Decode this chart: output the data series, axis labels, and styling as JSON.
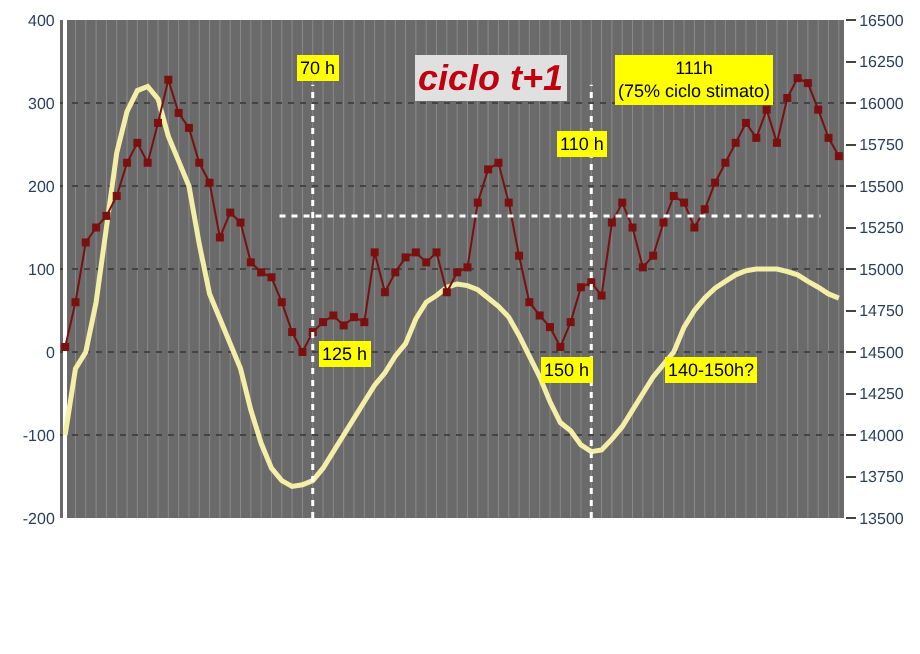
{
  "chart_data": {
    "type": "line",
    "title": "ciclo t+1",
    "categories": [
      null,
      null,
      null,
      null,
      null,
      null,
      null,
      null,
      null,
      null,
      null,
      null,
      null,
      null,
      null,
      null,
      null,
      null,
      null,
      null,
      null,
      null,
      null,
      null,
      null,
      null,
      null,
      null,
      null,
      null,
      null,
      null,
      null,
      null,
      null,
      null,
      null,
      null,
      null,
      null,
      null,
      null,
      null,
      null,
      null,
      null,
      null,
      null,
      null,
      null,
      null,
      null,
      null,
      null,
      null,
      null,
      null,
      null,
      null,
      null,
      null,
      null,
      null,
      null,
      null,
      null,
      null,
      null,
      null,
      null,
      null,
      null,
      null,
      null,
      null,
      null
    ],
    "series": [
      {
        "axis": "y",
        "color": "#f3efa6",
        "marker": "none",
        "values": [
          -100,
          -20,
          0,
          60,
          150,
          240,
          290,
          315,
          320,
          305,
          260,
          230,
          200,
          130,
          70,
          40,
          10,
          -20,
          -70,
          -110,
          -140,
          -155,
          -162,
          -160,
          -155,
          -140,
          -120,
          -100,
          -80,
          -60,
          -40,
          -25,
          -5,
          10,
          40,
          60,
          68,
          78,
          82,
          80,
          75,
          65,
          55,
          42,
          20,
          -5,
          -30,
          -60,
          -85,
          -95,
          -112,
          -120,
          -118,
          -105,
          -90,
          -70,
          -50,
          -30,
          -15,
          0,
          30,
          50,
          65,
          77,
          85,
          93,
          98,
          100,
          100,
          100,
          97,
          93,
          85,
          78,
          70,
          65
        ]
      },
      {
        "axis": "y2",
        "color": "#7a1010",
        "marker": "square",
        "values": [
          14530,
          14800,
          15160,
          15250,
          15320,
          15440,
          15640,
          15760,
          15640,
          15880,
          16140,
          15940,
          15850,
          15640,
          15520,
          15190,
          15340,
          15280,
          15040,
          14980,
          14950,
          14800,
          14620,
          14500,
          14620,
          14680,
          14720,
          14660,
          14710,
          14680,
          15100,
          14860,
          14980,
          15070,
          15100,
          15040,
          15100,
          14860,
          14980,
          15010,
          15400,
          15600,
          15640,
          15400,
          15080,
          14800,
          14720,
          14650,
          14530,
          14680,
          14890,
          14920,
          14840,
          15280,
          15400,
          15250,
          15010,
          15080,
          15280,
          15440,
          15400,
          15250,
          15360,
          15520,
          15640,
          15760,
          15880,
          15790,
          15960,
          15760,
          16030,
          16150,
          16120,
          15960,
          15790,
          15680
        ]
      }
    ],
    "ylim": [
      -200,
      400
    ],
    "yticks": [
      -200,
      -100,
      0,
      100,
      200,
      300,
      400
    ],
    "y2lim": [
      13500,
      16500
    ],
    "y2ticks": [
      13500,
      13750,
      14000,
      14250,
      14500,
      14750,
      15000,
      15250,
      15500,
      15750,
      16000,
      16250,
      16500
    ],
    "ref_lines": [
      {
        "axis": "y2",
        "value": 15320,
        "color": "#ffffff",
        "line_style": "dotted"
      }
    ],
    "annotations": [
      "70 h",
      "125 h",
      "110 h",
      "150 h",
      "140-150h?",
      "111h\n(75% ciclo stimato)"
    ],
    "grid": true
  }
}
